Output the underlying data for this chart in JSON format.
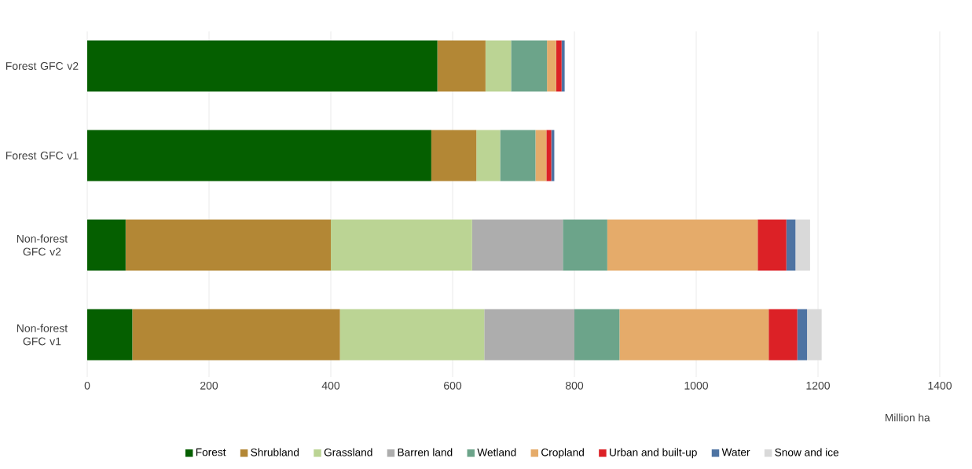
{
  "chart_data": {
    "type": "bar",
    "orientation": "horizontal",
    "stacked": true,
    "xlabel": "Million ha",
    "categories": [
      "Forest GFC v2",
      "Forest GFC v1",
      "Non-forest GFC v2",
      "Non-forest GFC v1"
    ],
    "series": [
      {
        "name": "Forest",
        "color": "#055f00",
        "values": [
          575,
          565,
          63,
          74
        ]
      },
      {
        "name": "Shrubland",
        "color": "#b38735",
        "values": [
          79,
          74,
          337,
          341
        ]
      },
      {
        "name": "Grassland",
        "color": "#bbd494",
        "values": [
          42,
          39,
          232,
          237
        ]
      },
      {
        "name": "Barren land",
        "color": "#adadad",
        "values": [
          0,
          0,
          149,
          148
        ]
      },
      {
        "name": "Wetland",
        "color": "#6ca48a",
        "values": [
          59,
          58,
          73,
          74
        ]
      },
      {
        "name": "Cropland",
        "color": "#e5ab6a",
        "values": [
          15,
          18,
          247,
          245
        ]
      },
      {
        "name": "Urban and built-up",
        "color": "#dc2126",
        "values": [
          9,
          8,
          47,
          47
        ]
      },
      {
        "name": "Water",
        "color": "#4e73a2",
        "values": [
          5,
          5,
          15,
          16
        ]
      },
      {
        "name": "Snow and ice",
        "color": "#d9d9d9",
        "values": [
          0,
          0,
          24,
          24
        ]
      }
    ],
    "xlim": [
      0,
      1400
    ],
    "xticks": [
      0,
      200,
      400,
      600,
      800,
      1000,
      1200,
      1400
    ],
    "grid": "x",
    "legend": "bottom"
  }
}
